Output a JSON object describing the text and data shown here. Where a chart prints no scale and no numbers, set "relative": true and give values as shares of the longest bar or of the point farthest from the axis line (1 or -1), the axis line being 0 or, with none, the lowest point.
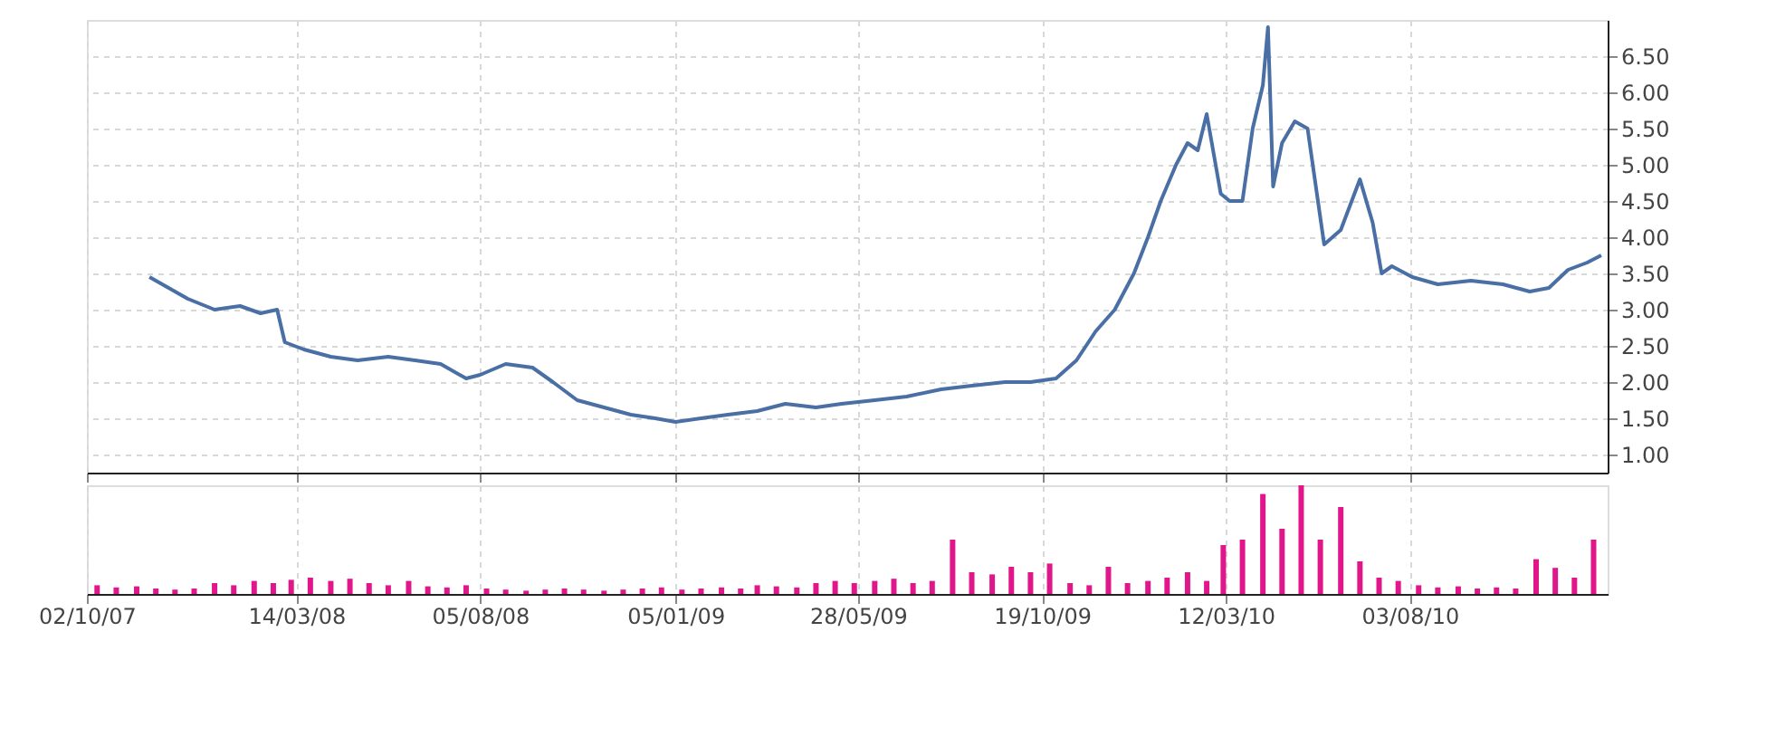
{
  "chart_data": [
    {
      "type": "line",
      "xlim": [
        "2007-10-02",
        "2011-01-05"
      ],
      "ylim": [
        0.75,
        7.0
      ],
      "grid": true,
      "tick_labels": "y",
      "xticks": [
        {
          "value": "2007-10-02",
          "label": null
        },
        {
          "value": "2008-03-14",
          "label": null
        },
        {
          "value": "2008-08-05",
          "label": null
        },
        {
          "value": "2009-01-05",
          "label": null
        },
        {
          "value": "2009-05-28",
          "label": null
        },
        {
          "value": "2009-10-19",
          "label": null
        },
        {
          "value": "2010-03-12",
          "label": null
        },
        {
          "value": "2010-08-03",
          "label": null
        }
      ],
      "yticks": [
        {
          "value": 1,
          "label": "1.00"
        },
        {
          "value": 1.5,
          "label": "1.50"
        },
        {
          "value": 2,
          "label": "2.00"
        },
        {
          "value": 2.5,
          "label": "2.50"
        },
        {
          "value": 3,
          "label": "3.00"
        },
        {
          "value": 3.5,
          "label": "3.50"
        },
        {
          "value": 4,
          "label": "4.00"
        },
        {
          "value": 4.5,
          "label": "4.50"
        },
        {
          "value": 5,
          "label": "5.00"
        },
        {
          "value": 5.5,
          "label": "5.50"
        },
        {
          "value": 6,
          "label": "6.00"
        },
        {
          "value": 6.5,
          "label": "6.50"
        }
      ],
      "series": [
        {
          "color": "#4a6fa5",
          "x": [
            "2007-11-20",
            "2007-12-05",
            "2007-12-20",
            "2008-01-10",
            "2008-01-30",
            "2008-02-15",
            "2008-02-28",
            "2008-03-05",
            "2008-03-20",
            "2008-04-10",
            "2008-05-01",
            "2008-05-25",
            "2008-06-15",
            "2008-07-05",
            "2008-07-25",
            "2008-08-05",
            "2008-08-25",
            "2008-09-15",
            "2008-10-01",
            "2008-10-20",
            "2008-11-10",
            "2008-12-01",
            "2008-12-20",
            "2009-01-05",
            "2009-01-25",
            "2009-02-15",
            "2009-03-10",
            "2009-04-01",
            "2009-04-25",
            "2009-05-15",
            "2009-06-10",
            "2009-07-05",
            "2009-08-01",
            "2009-08-25",
            "2009-09-20",
            "2009-10-10",
            "2009-10-30",
            "2009-11-15",
            "2009-11-30",
            "2009-12-15",
            "2009-12-30",
            "2010-01-10",
            "2010-01-20",
            "2010-02-01",
            "2010-02-10",
            "2010-02-18",
            "2010-02-25",
            "2010-03-08",
            "2010-03-15",
            "2010-03-25",
            "2010-04-02",
            "2010-04-10",
            "2010-04-14",
            "2010-04-18",
            "2010-04-25",
            "2010-05-05",
            "2010-05-15",
            "2010-05-28",
            "2010-06-10",
            "2010-06-25",
            "2010-07-05",
            "2010-07-12",
            "2010-07-20",
            "2010-08-05",
            "2010-08-25",
            "2010-09-20",
            "2010-10-15",
            "2010-11-05",
            "2010-11-20",
            "2010-12-05",
            "2010-12-20",
            "2010-12-31"
          ],
          "values": [
            3.45,
            3.3,
            3.15,
            3.0,
            3.05,
            2.95,
            3.0,
            2.55,
            2.45,
            2.35,
            2.3,
            2.35,
            2.3,
            2.25,
            2.05,
            2.1,
            2.25,
            2.2,
            2.0,
            1.75,
            1.65,
            1.55,
            1.5,
            1.45,
            1.5,
            1.55,
            1.6,
            1.7,
            1.65,
            1.7,
            1.75,
            1.8,
            1.9,
            1.95,
            2.0,
            2.0,
            2.05,
            2.3,
            2.7,
            3.0,
            3.5,
            4.0,
            4.5,
            5.0,
            5.3,
            5.2,
            5.7,
            4.6,
            4.5,
            4.5,
            5.5,
            6.1,
            6.9,
            4.7,
            5.3,
            5.6,
            5.5,
            3.9,
            4.1,
            4.8,
            4.2,
            3.5,
            3.6,
            3.45,
            3.35,
            3.4,
            3.35,
            3.25,
            3.3,
            3.55,
            3.65,
            3.75
          ]
        }
      ]
    },
    {
      "type": "bar",
      "relative": true,
      "xlim": [
        "2007-10-02",
        "2011-01-05"
      ],
      "grid": true,
      "xticks": [
        {
          "value": "2007-10-02",
          "label": "02/10/07"
        },
        {
          "value": "2008-03-14",
          "label": "14/03/08"
        },
        {
          "value": "2008-08-05",
          "label": "05/08/08"
        },
        {
          "value": "2009-01-05",
          "label": "05/01/09"
        },
        {
          "value": "2009-05-28",
          "label": "28/05/09"
        },
        {
          "value": "2009-10-19",
          "label": "19/10/09"
        },
        {
          "value": "2010-03-12",
          "label": "12/03/10"
        },
        {
          "value": "2010-08-03",
          "label": "03/08/10"
        }
      ],
      "series": [
        {
          "color": "#e0168a",
          "x": [
            "2007-10-10",
            "2007-10-25",
            "2007-11-10",
            "2007-11-25",
            "2007-12-10",
            "2007-12-25",
            "2008-01-10",
            "2008-01-25",
            "2008-02-10",
            "2008-02-25",
            "2008-03-10",
            "2008-03-25",
            "2008-04-10",
            "2008-04-25",
            "2008-05-10",
            "2008-05-25",
            "2008-06-10",
            "2008-06-25",
            "2008-07-10",
            "2008-07-25",
            "2008-08-10",
            "2008-08-25",
            "2008-09-10",
            "2008-09-25",
            "2008-10-10",
            "2008-10-25",
            "2008-11-10",
            "2008-11-25",
            "2008-12-10",
            "2008-12-25",
            "2009-01-10",
            "2009-01-25",
            "2009-02-10",
            "2009-02-25",
            "2009-03-10",
            "2009-03-25",
            "2009-04-10",
            "2009-04-25",
            "2009-05-10",
            "2009-05-25",
            "2009-06-10",
            "2009-06-25",
            "2009-07-10",
            "2009-07-25",
            "2009-08-10",
            "2009-08-25",
            "2009-09-10",
            "2009-09-25",
            "2009-10-10",
            "2009-10-25",
            "2009-11-10",
            "2009-11-25",
            "2009-12-10",
            "2009-12-25",
            "2010-01-10",
            "2010-01-25",
            "2010-02-10",
            "2010-02-25",
            "2010-03-10",
            "2010-03-25",
            "2010-04-10",
            "2010-04-25",
            "2010-05-10",
            "2010-05-25",
            "2010-06-10",
            "2010-06-25",
            "2010-07-10",
            "2010-07-25",
            "2010-08-10",
            "2010-08-25",
            "2010-09-10",
            "2010-09-25",
            "2010-10-10",
            "2010-10-25",
            "2010-11-10",
            "2010-11-25",
            "2010-12-10",
            "2010-12-25"
          ],
          "values": [
            0.08,
            0.06,
            0.07,
            0.05,
            0.04,
            0.05,
            0.1,
            0.08,
            0.12,
            0.1,
            0.13,
            0.15,
            0.12,
            0.14,
            0.1,
            0.08,
            0.12,
            0.07,
            0.06,
            0.08,
            0.05,
            0.04,
            0.03,
            0.04,
            0.05,
            0.04,
            0.03,
            0.04,
            0.05,
            0.06,
            0.04,
            0.05,
            0.06,
            0.05,
            0.08,
            0.07,
            0.06,
            0.1,
            0.12,
            0.1,
            0.12,
            0.14,
            0.1,
            0.12,
            0.5,
            0.2,
            0.18,
            0.25,
            0.2,
            0.28,
            0.1,
            0.08,
            0.25,
            0.1,
            0.12,
            0.15,
            0.2,
            0.12,
            0.45,
            0.5,
            0.92,
            0.6,
            1.0,
            0.5,
            0.8,
            0.3,
            0.15,
            0.12,
            0.08,
            0.06,
            0.07,
            0.05,
            0.06,
            0.05,
            0.32,
            0.24,
            0.15,
            0.5
          ]
        }
      ]
    }
  ]
}
